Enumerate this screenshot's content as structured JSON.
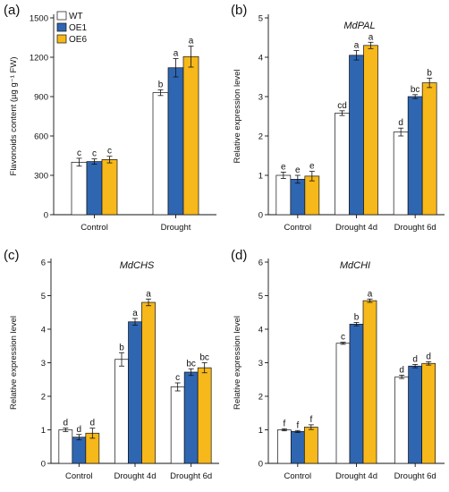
{
  "colors": {
    "WT": "#ffffff",
    "OE1": "#2f66b2",
    "OE6": "#f6b81a"
  },
  "legend": [
    "WT",
    "OE1",
    "OE6"
  ],
  "chart_data": [
    {
      "panel": "(a)",
      "type": "bar",
      "title": "",
      "ylabel": "Flavonoids content (µg g⁻¹ FW)",
      "ylim": [
        0,
        1500
      ],
      "yticks": [
        0,
        300,
        600,
        900,
        1200,
        1500
      ],
      "categories": [
        "Control",
        "Drought"
      ],
      "series": [
        {
          "name": "WT",
          "values": [
            400,
            930
          ],
          "errors": [
            30,
            22
          ],
          "letters": [
            "c",
            "b"
          ]
        },
        {
          "name": "OE1",
          "values": [
            405,
            1120
          ],
          "errors": [
            20,
            70
          ],
          "letters": [
            "c",
            "a"
          ]
        },
        {
          "name": "OE6",
          "values": [
            420,
            1205
          ],
          "errors": [
            25,
            80
          ],
          "letters": [
            "c",
            "a"
          ]
        }
      ]
    },
    {
      "panel": "(b)",
      "type": "bar",
      "title": "MdPAL",
      "ylabel": "Relative expression level",
      "ylim": [
        0,
        5
      ],
      "yticks": [
        0,
        1,
        2,
        3,
        4,
        5
      ],
      "categories": [
        "Control",
        "Drought 4d",
        "Drought 6d"
      ],
      "series": [
        {
          "name": "WT",
          "values": [
            1.0,
            2.58,
            2.1
          ],
          "errors": [
            0.08,
            0.06,
            0.1
          ],
          "letters": [
            "e",
            "cd",
            "d"
          ]
        },
        {
          "name": "OE1",
          "values": [
            0.9,
            4.05,
            3.0
          ],
          "errors": [
            0.1,
            0.12,
            0.05
          ],
          "letters": [
            "e",
            "a",
            "bc"
          ]
        },
        {
          "name": "OE6",
          "values": [
            0.98,
            4.3,
            3.35
          ],
          "errors": [
            0.12,
            0.08,
            0.12
          ],
          "letters": [
            "e",
            "a",
            "b"
          ]
        }
      ]
    },
    {
      "panel": "(c)",
      "type": "bar",
      "title": "MdCHS",
      "ylabel": "Relative expression level",
      "ylim": [
        0,
        6
      ],
      "yticks": [
        0,
        1,
        2,
        3,
        4,
        5,
        6
      ],
      "categories": [
        "Control",
        "Drought 4d",
        "Drought 6d"
      ],
      "series": [
        {
          "name": "WT",
          "values": [
            1.0,
            3.1,
            2.28
          ],
          "errors": [
            0.05,
            0.2,
            0.12
          ],
          "letters": [
            "d",
            "b",
            "c"
          ]
        },
        {
          "name": "OE1",
          "values": [
            0.78,
            4.22,
            2.72
          ],
          "errors": [
            0.08,
            0.1,
            0.1
          ],
          "letters": [
            "d",
            "a",
            "bc"
          ]
        },
        {
          "name": "OE6",
          "values": [
            0.9,
            4.8,
            2.85
          ],
          "errors": [
            0.15,
            0.1,
            0.15
          ],
          "letters": [
            "d",
            "a",
            "bc"
          ]
        }
      ]
    },
    {
      "panel": "(d)",
      "type": "bar",
      "title": "MdCHI",
      "ylabel": "Relative expression level",
      "ylim": [
        0,
        6
      ],
      "yticks": [
        0,
        1,
        2,
        3,
        4,
        5,
        6
      ],
      "categories": [
        "Control",
        "Drought 4d",
        "Drought 6d"
      ],
      "series": [
        {
          "name": "WT",
          "values": [
            1.0,
            3.58,
            2.58
          ],
          "errors": [
            0.03,
            0.03,
            0.05
          ],
          "letters": [
            "f",
            "c",
            "d"
          ]
        },
        {
          "name": "OE1",
          "values": [
            0.95,
            4.15,
            2.9
          ],
          "errors": [
            0.03,
            0.05,
            0.05
          ],
          "letters": [
            "f",
            "b",
            "d"
          ]
        },
        {
          "name": "OE6",
          "values": [
            1.08,
            4.85,
            2.98
          ],
          "errors": [
            0.07,
            0.05,
            0.05
          ],
          "letters": [
            "f",
            "a",
            "d"
          ]
        }
      ]
    }
  ]
}
